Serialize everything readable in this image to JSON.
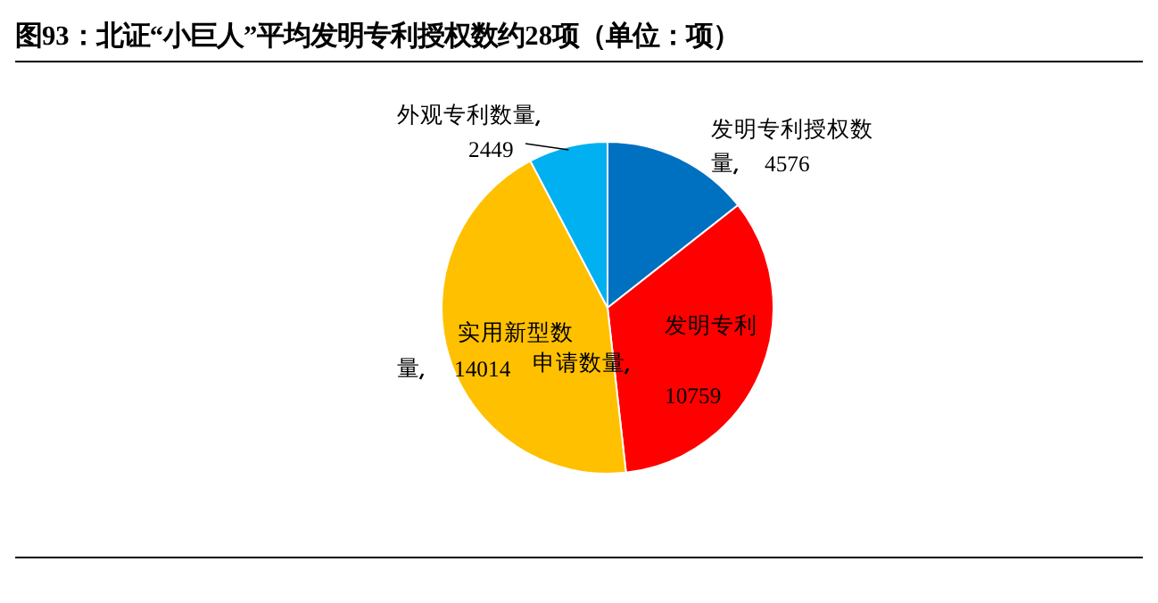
{
  "chart_data": {
    "type": "pie",
    "title": "图93：北证“小巨人”平均发明专利授权数约28项（单位：项）",
    "categories": [
      "发明专利授权数量",
      "发明专利申请数量",
      "实用新型数量",
      "外观专利数量"
    ],
    "values": [
      4576,
      10759,
      14014,
      2449
    ],
    "colors": [
      "#0070c0",
      "#ff0000",
      "#ffc000",
      "#00b0f0"
    ],
    "data_labels": true
  }
}
